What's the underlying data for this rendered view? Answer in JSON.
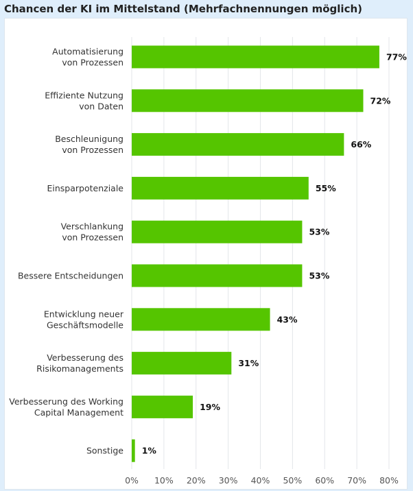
{
  "title": "Chancen der KI im Mittelstand (Mehrfachnennungen möglich)",
  "colors": {
    "bar": "#55c500",
    "grid": "#e3e6ea",
    "background": "#dfeefb"
  },
  "chart_data": {
    "type": "bar",
    "orientation": "horizontal",
    "title": "Chancen der KI im Mittelstand (Mehrfachnennungen möglich)",
    "categories": [
      [
        "Automatisierung",
        "von Prozessen"
      ],
      [
        "Effiziente Nutzung",
        "von Daten"
      ],
      [
        "Beschleunigung",
        "von Prozessen"
      ],
      [
        "Einsparpotenziale"
      ],
      [
        "Verschlankung",
        "von Prozessen"
      ],
      [
        "Bessere Entscheidungen"
      ],
      [
        "Entwicklung neuer",
        "Geschäftsmodelle"
      ],
      [
        "Verbesserung des",
        "Risikomanagements"
      ],
      [
        "Verbesserung des Working",
        "Capital Management"
      ],
      [
        "Sonstige"
      ]
    ],
    "values": [
      77,
      72,
      66,
      55,
      53,
      53,
      43,
      31,
      19,
      1
    ],
    "value_labels": [
      "77%",
      "72%",
      "66%",
      "55%",
      "53%",
      "53%",
      "43%",
      "31%",
      "19%",
      "1%"
    ],
    "xlim": [
      0,
      80
    ],
    "x_ticks": [
      0,
      10,
      20,
      30,
      40,
      50,
      60,
      70,
      80
    ],
    "x_tick_labels": [
      "0%",
      "10%",
      "20%",
      "30%",
      "40%",
      "50%",
      "60%",
      "70%",
      "80%"
    ],
    "grid": true,
    "legend": "none"
  }
}
